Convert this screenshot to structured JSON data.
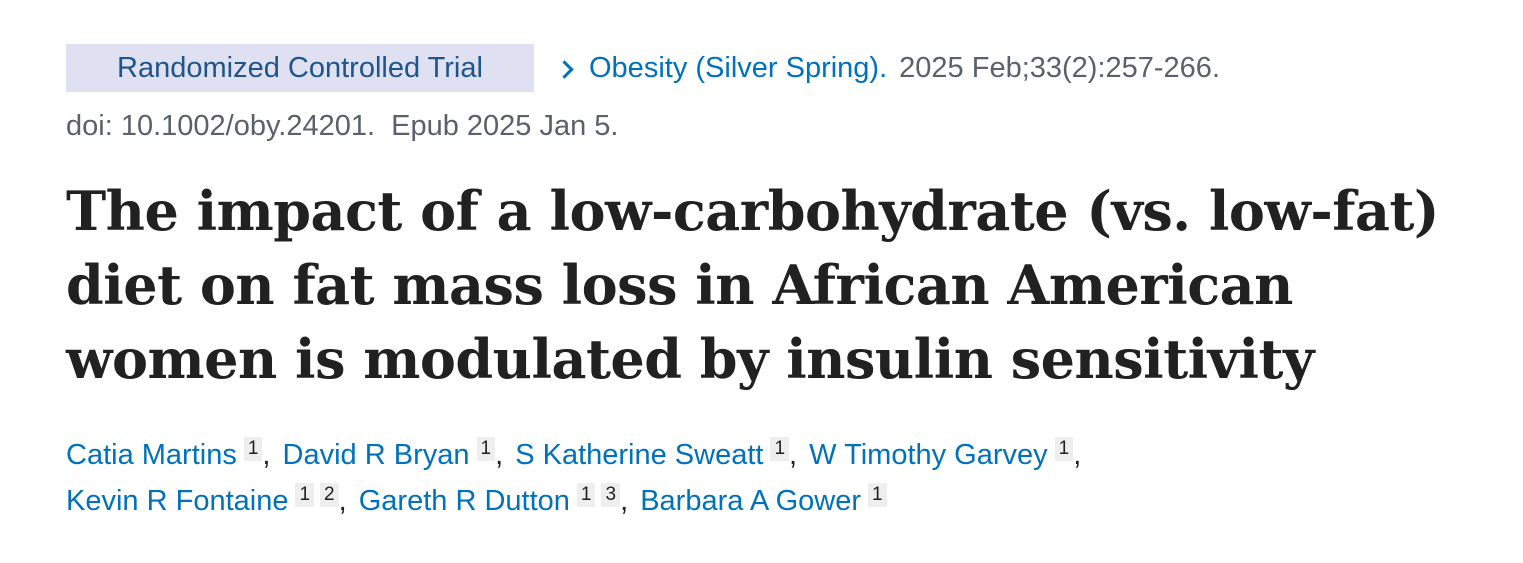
{
  "publication_type": "Randomized Controlled Trial",
  "citation": {
    "journal": "Obesity (Silver Spring).",
    "details": "2025 Feb;33(2):257-266.",
    "doi": "doi: 10.1002/oby.24201.",
    "epub": "Epub 2025 Jan 5."
  },
  "title": "The impact of a low-carbohydrate (vs. low-fat) diet on fat mass loss in African American women is modulated by insulin sensitivity",
  "authors": [
    {
      "name": "Catia Martins",
      "affiliations": [
        "1"
      ],
      "sep": ","
    },
    {
      "name": "David R Bryan",
      "affiliations": [
        "1"
      ],
      "sep": ","
    },
    {
      "name": "S Katherine Sweatt",
      "affiliations": [
        "1"
      ],
      "sep": ","
    },
    {
      "name": "W Timothy Garvey",
      "affiliations": [
        "1"
      ],
      "sep": ","
    },
    {
      "name": "Kevin R Fontaine",
      "affiliations": [
        "1",
        "2"
      ],
      "sep": ","
    },
    {
      "name": "Gareth R Dutton",
      "affiliations": [
        "1",
        "3"
      ],
      "sep": ","
    },
    {
      "name": "Barbara A Gower",
      "affiliations": [
        "1"
      ],
      "sep": ""
    }
  ],
  "colors": {
    "link": "#0071bc",
    "badge_bg": "#dfe1f2",
    "badge_text": "#20558a",
    "muted_text": "#5b616b",
    "title_text": "#212121",
    "affil_bg": "#eeeeee"
  },
  "icons": {
    "journal_link": "chevron-right-icon"
  }
}
